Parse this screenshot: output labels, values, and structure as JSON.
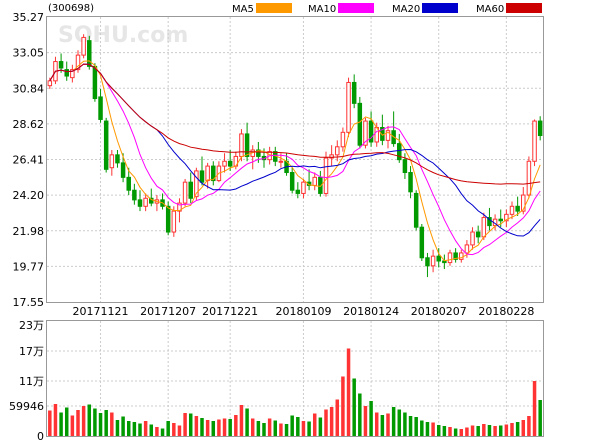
{
  "chart_data": {
    "type": "candlestick",
    "code": "(300698)",
    "watermark": "SOHU.com",
    "legend": [
      {
        "name": "MA5",
        "color": "#ff9900"
      },
      {
        "name": "MA10",
        "color": "#ff00ff"
      },
      {
        "name": "MA20",
        "color": "#0000cc"
      },
      {
        "name": "MA60",
        "color": "#cc0000"
      }
    ],
    "colors": {
      "up": "#ff3333",
      "down": "#009900",
      "frame": "#999999",
      "grid": "#cccccc"
    },
    "price_axis": {
      "ticks": [
        "35.27",
        "33.05",
        "30.84",
        "28.62",
        "26.41",
        "24.20",
        "21.98",
        "19.77",
        "17.55"
      ],
      "range": [
        17.55,
        35.27
      ]
    },
    "date_labels": [
      {
        "text": "20171121",
        "index": 9
      },
      {
        "text": "20171207",
        "index": 21
      },
      {
        "text": "20171221",
        "index": 32
      },
      {
        "text": "20180109",
        "index": 45
      },
      {
        "text": "20180124",
        "index": 57
      },
      {
        "text": "20180207",
        "index": 69
      },
      {
        "text": "20180228",
        "index": 81
      }
    ],
    "volume_axis": {
      "ticks": [
        {
          "label": "23万",
          "value": 230000
        },
        {
          "label": "17万",
          "value": 170000
        },
        {
          "label": "11万",
          "value": 110000
        },
        {
          "label": "59946",
          "value": 59946
        },
        {
          "label": "0",
          "value": 0
        }
      ],
      "range": [
        0,
        230000
      ]
    },
    "candles": [
      [
        31.0,
        31.5,
        30.8,
        31.3,
        51000
      ],
      [
        31.3,
        32.8,
        31.1,
        32.5,
        64000
      ],
      [
        32.5,
        33.0,
        31.8,
        32.1,
        47000
      ],
      [
        32.0,
        32.5,
        31.3,
        31.6,
        57000
      ],
      [
        31.5,
        32.3,
        31.2,
        32.0,
        41000
      ],
      [
        32.0,
        33.2,
        31.8,
        32.9,
        52000
      ],
      [
        32.9,
        34.2,
        32.7,
        34.0,
        60000
      ],
      [
        33.8,
        34.1,
        32.0,
        32.2,
        63000
      ],
      [
        32.2,
        32.4,
        30.0,
        30.2,
        55000
      ],
      [
        30.3,
        30.8,
        28.7,
        28.9,
        46000
      ],
      [
        28.8,
        29.0,
        25.6,
        25.8,
        52000
      ],
      [
        25.9,
        27.0,
        25.4,
        26.7,
        47000
      ],
      [
        26.7,
        27.0,
        25.9,
        26.2,
        32000
      ],
      [
        26.2,
        26.8,
        25.0,
        25.3,
        39000
      ],
      [
        25.3,
        25.9,
        24.2,
        24.5,
        30000
      ],
      [
        24.5,
        24.9,
        23.6,
        23.9,
        28000
      ],
      [
        23.9,
        24.5,
        23.2,
        23.5,
        25000
      ],
      [
        23.5,
        24.3,
        23.2,
        24.0,
        30000
      ],
      [
        24.0,
        24.6,
        23.5,
        23.7,
        23000
      ],
      [
        23.7,
        24.2,
        23.2,
        23.9,
        18000
      ],
      [
        23.9,
        24.3,
        23.3,
        23.5,
        15000
      ],
      [
        23.5,
        23.8,
        21.7,
        21.9,
        30000
      ],
      [
        21.9,
        23.5,
        21.6,
        23.2,
        26000
      ],
      [
        23.2,
        24.0,
        22.5,
        23.7,
        21000
      ],
      [
        23.7,
        25.2,
        23.5,
        25.0,
        46000
      ],
      [
        25.0,
        25.6,
        23.7,
        24.0,
        45000
      ],
      [
        24.1,
        25.9,
        23.9,
        25.7,
        40000
      ],
      [
        25.7,
        26.6,
        24.8,
        25.0,
        36000
      ],
      [
        25.1,
        26.2,
        24.6,
        26.0,
        32000
      ],
      [
        26.0,
        26.3,
        24.8,
        25.1,
        30000
      ],
      [
        25.1,
        26.3,
        25.0,
        26.0,
        33000
      ],
      [
        26.0,
        26.8,
        25.6,
        26.3,
        35000
      ],
      [
        26.3,
        27.0,
        25.7,
        26.0,
        34000
      ],
      [
        26.0,
        26.9,
        25.8,
        26.6,
        42000
      ],
      [
        26.6,
        28.3,
        26.3,
        28.0,
        62000
      ],
      [
        28.0,
        28.7,
        26.3,
        26.6,
        55000
      ],
      [
        26.6,
        27.3,
        25.8,
        27.0,
        35000
      ],
      [
        27.0,
        27.5,
        26.2,
        26.6,
        30000
      ],
      [
        26.6,
        27.1,
        25.9,
        26.4,
        26000
      ],
      [
        26.4,
        27.2,
        26.1,
        26.9,
        35000
      ],
      [
        26.9,
        27.2,
        26.0,
        26.3,
        31000
      ],
      [
        26.3,
        26.8,
        25.9,
        26.3,
        25000
      ],
      [
        26.3,
        26.8,
        25.4,
        25.6,
        24000
      ],
      [
        25.6,
        25.9,
        24.3,
        24.5,
        41000
      ],
      [
        24.5,
        25.0,
        24.0,
        24.3,
        38000
      ],
      [
        24.3,
        25.2,
        24.0,
        25.0,
        30000
      ],
      [
        25.0,
        25.8,
        24.5,
        24.8,
        29000
      ],
      [
        24.8,
        25.6,
        24.5,
        25.3,
        45000
      ],
      [
        25.3,
        25.7,
        24.1,
        24.3,
        37000
      ],
      [
        24.3,
        26.9,
        24.1,
        26.5,
        53000
      ],
      [
        26.5,
        27.3,
        26.0,
        26.7,
        58000
      ],
      [
        26.7,
        27.6,
        26.3,
        27.2,
        73000
      ],
      [
        27.2,
        28.4,
        26.9,
        28.1,
        119000
      ],
      [
        28.1,
        31.5,
        27.8,
        31.2,
        175000
      ],
      [
        31.2,
        31.7,
        29.6,
        29.9,
        115000
      ],
      [
        29.9,
        30.3,
        27.1,
        27.3,
        85000
      ],
      [
        27.3,
        29.0,
        27.1,
        28.8,
        60000
      ],
      [
        28.8,
        29.4,
        27.2,
        27.5,
        70000
      ],
      [
        27.5,
        28.7,
        27.2,
        28.4,
        47000
      ],
      [
        28.4,
        29.2,
        27.3,
        27.6,
        42000
      ],
      [
        27.6,
        28.5,
        27.1,
        28.2,
        45000
      ],
      [
        28.2,
        29.4,
        27.2,
        27.4,
        58000
      ],
      [
        27.4,
        28.0,
        26.2,
        26.4,
        53000
      ],
      [
        26.4,
        26.8,
        25.2,
        25.6,
        47000
      ],
      [
        25.6,
        26.0,
        24.0,
        24.4,
        40000
      ],
      [
        24.3,
        24.5,
        22.0,
        22.2,
        38000
      ],
      [
        22.2,
        22.4,
        20.1,
        20.3,
        31000
      ],
      [
        20.3,
        20.6,
        19.1,
        19.8,
        28000
      ],
      [
        19.8,
        20.8,
        19.4,
        20.4,
        27000
      ],
      [
        20.4,
        20.9,
        19.7,
        20.1,
        22000
      ],
      [
        20.1,
        20.5,
        19.6,
        20.0,
        20000
      ],
      [
        20.0,
        20.8,
        19.8,
        20.6,
        18000
      ],
      [
        20.6,
        20.9,
        20.0,
        20.2,
        15000
      ],
      [
        20.2,
        20.8,
        20.0,
        20.6,
        14000
      ],
      [
        20.6,
        21.4,
        20.3,
        21.1,
        17000
      ],
      [
        21.1,
        22.2,
        20.8,
        21.9,
        21000
      ],
      [
        21.9,
        22.3,
        21.2,
        21.6,
        20000
      ],
      [
        21.6,
        23.1,
        21.4,
        22.8,
        24000
      ],
      [
        22.8,
        23.4,
        22.0,
        22.3,
        22000
      ],
      [
        22.3,
        23.0,
        22.0,
        22.7,
        20000
      ],
      [
        22.7,
        23.3,
        22.2,
        22.6,
        21000
      ],
      [
        22.6,
        23.3,
        22.2,
        23.0,
        23000
      ],
      [
        23.0,
        23.8,
        22.7,
        23.5,
        26000
      ],
      [
        23.5,
        24.1,
        22.9,
        23.2,
        28000
      ],
      [
        23.2,
        24.7,
        23.0,
        24.2,
        32000
      ],
      [
        24.2,
        26.6,
        24.0,
        26.3,
        40000
      ],
      [
        26.3,
        28.9,
        26.0,
        28.8,
        110000
      ],
      [
        28.8,
        29.1,
        27.6,
        27.9,
        72000
      ]
    ]
  }
}
